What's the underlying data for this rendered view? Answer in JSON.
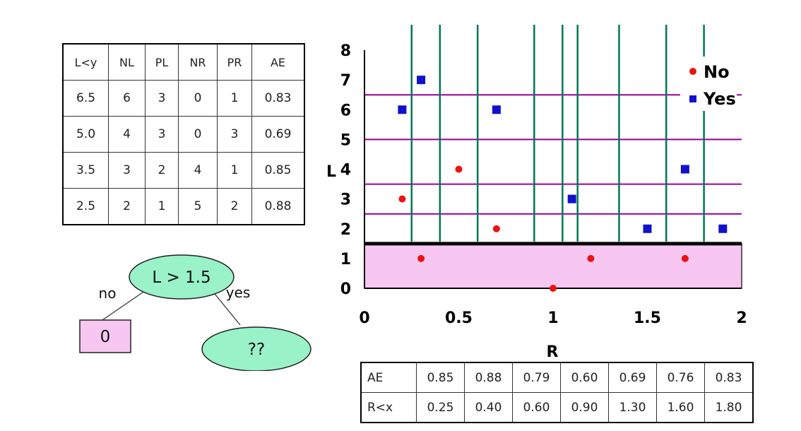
{
  "split_table": {
    "headers": [
      "L<y",
      "NL",
      "PL",
      "NR",
      "PR",
      "AE"
    ],
    "rows": [
      [
        "6.5",
        "6",
        "3",
        "0",
        "1",
        "0.83"
      ],
      [
        "5.0",
        "4",
        "3",
        "0",
        "3",
        "0.69"
      ],
      [
        "3.5",
        "3",
        "2",
        "4",
        "1",
        "0.85"
      ],
      [
        "2.5",
        "2",
        "1",
        "5",
        "2",
        "0.88"
      ]
    ]
  },
  "tree": {
    "root": "L > 1.5",
    "left_edge": "no",
    "right_edge": "yes",
    "left_leaf": "0",
    "right_leaf": "??",
    "colors": {
      "node_fill": "#99f2c8",
      "leaf_fill": "#f7c7f2"
    }
  },
  "chart_data": {
    "type": "scatter",
    "xlabel": "R",
    "ylabel": "L",
    "xlim": [
      0,
      2
    ],
    "ylim": [
      0,
      8
    ],
    "x_ticks": [
      "0",
      "0.5",
      "1",
      "1.5",
      "2"
    ],
    "y_ticks": [
      "0",
      "1",
      "2",
      "3",
      "4",
      "5",
      "6",
      "7",
      "8"
    ],
    "legend": {
      "position": "top-right",
      "entries": [
        "No",
        "Yes"
      ]
    },
    "series": [
      {
        "name": "No",
        "color": "#ee1111",
        "marker": "circle",
        "points": [
          [
            0.2,
            3
          ],
          [
            0.3,
            1
          ],
          [
            0.5,
            4
          ],
          [
            0.7,
            2
          ],
          [
            1.0,
            0
          ],
          [
            1.2,
            1
          ],
          [
            1.7,
            1
          ]
        ]
      },
      {
        "name": "Yes",
        "color": "#1111cc",
        "marker": "square",
        "points": [
          [
            0.2,
            6
          ],
          [
            0.3,
            7
          ],
          [
            0.7,
            6
          ],
          [
            1.1,
            3
          ],
          [
            1.5,
            2
          ],
          [
            1.7,
            4
          ],
          [
            1.9,
            2
          ]
        ]
      }
    ],
    "horizontal_splits": [
      6.5,
      5.0,
      3.5,
      2.5
    ],
    "vertical_splits": [
      0.25,
      0.4,
      0.6,
      0.9,
      1.05,
      1.13,
      1.35,
      1.6,
      1.8
    ],
    "split_line_colors": {
      "horizontal": "#990099",
      "vertical": "#007755"
    },
    "region": {
      "ymax": 1.5,
      "fill": "#f7c7f2",
      "boundary": 1.5
    }
  },
  "r_table": {
    "rows": [
      {
        "label": "AE",
        "values": [
          "0.85",
          "0.88",
          "0.79",
          "0.60",
          "0.69",
          "0.76",
          "0.83"
        ]
      },
      {
        "label": "R<x",
        "values": [
          "0.25",
          "0.40",
          "0.60",
          "0.90",
          "1.30",
          "1.60",
          "1.80"
        ]
      }
    ]
  }
}
